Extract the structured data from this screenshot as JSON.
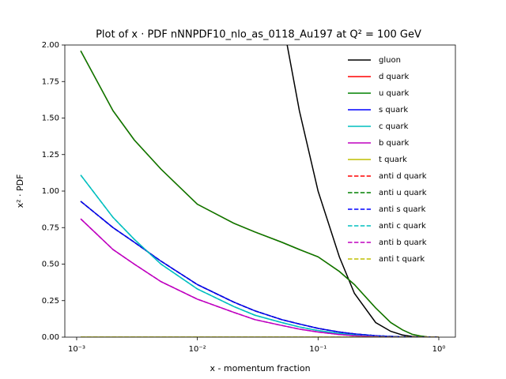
{
  "chart_data": {
    "type": "line",
    "title": "Plot of x · PDF nNNPDF10_nlo_as_0118_Au197 at Q² = 100 GeV",
    "x_label": "x - momentum fraction",
    "y_label": "x² · PDF",
    "x_scale": "log",
    "xlim": [
      0.000798,
      1.373
    ],
    "ylim": [
      0,
      2
    ],
    "xticks": [
      {
        "value": 0.001,
        "label": "10⁻³"
      },
      {
        "value": 0.01,
        "label": "10⁻²"
      },
      {
        "value": 0.1,
        "label": "10⁻¹"
      },
      {
        "value": 1,
        "label": "10⁰"
      }
    ],
    "yticks": [
      {
        "value": 0,
        "label": "0.00"
      },
      {
        "value": 0.25,
        "label": "0.25"
      },
      {
        "value": 0.5,
        "label": "0.50"
      },
      {
        "value": 0.75,
        "label": "0.75"
      },
      {
        "value": 1,
        "label": "1.00"
      },
      {
        "value": 1.25,
        "label": "1.25"
      },
      {
        "value": 1.5,
        "label": "1.50"
      },
      {
        "value": 1.75,
        "label": "1.75"
      },
      {
        "value": 2,
        "label": "2.00"
      }
    ],
    "legend": "upper right",
    "x": [
      0.00108,
      0.002,
      0.003,
      0.005,
      0.01,
      0.02,
      0.03,
      0.05,
      0.07,
      0.1,
      0.15,
      0.2,
      0.3,
      0.4,
      0.5,
      0.6,
      0.7,
      0.8,
      1.0
    ],
    "series": [
      {
        "name": "gluon",
        "color": "#000000",
        "linestyle": "solid",
        "values": [
          null,
          null,
          null,
          null,
          null,
          null,
          null,
          2.2,
          1.55,
          1.0,
          0.55,
          0.3,
          0.1,
          0.04,
          0.015,
          0.005,
          0.001,
          0,
          0
        ]
      },
      {
        "name": "d quark",
        "color": "#ff0000",
        "linestyle": "solid",
        "values": [
          1.96,
          1.55,
          1.35,
          1.15,
          0.91,
          0.78,
          0.72,
          0.65,
          0.6,
          0.55,
          0.45,
          0.36,
          0.2,
          0.1,
          0.05,
          0.02,
          0.008,
          0.002,
          0
        ]
      },
      {
        "name": "u quark",
        "color": "#008000",
        "linestyle": "solid",
        "values": [
          1.96,
          1.55,
          1.35,
          1.15,
          0.91,
          0.78,
          0.72,
          0.65,
          0.6,
          0.55,
          0.45,
          0.36,
          0.2,
          0.1,
          0.05,
          0.02,
          0.008,
          0.002,
          0
        ]
      },
      {
        "name": "s quark",
        "color": "#0000ff",
        "linestyle": "solid",
        "values": [
          0.93,
          0.75,
          0.65,
          0.52,
          0.36,
          0.24,
          0.18,
          0.12,
          0.09,
          0.06,
          0.035,
          0.022,
          0.01,
          0.005,
          0.002,
          0.001,
          0,
          0,
          0
        ]
      },
      {
        "name": "c quark",
        "color": "#00bfbf",
        "linestyle": "solid",
        "values": [
          1.11,
          0.82,
          0.67,
          0.5,
          0.33,
          0.21,
          0.15,
          0.1,
          0.07,
          0.045,
          0.025,
          0.015,
          0.006,
          0.002,
          0.001,
          0,
          0,
          0,
          0
        ]
      },
      {
        "name": "b quark",
        "color": "#bf00bf",
        "linestyle": "solid",
        "values": [
          0.81,
          0.6,
          0.5,
          0.38,
          0.26,
          0.17,
          0.12,
          0.08,
          0.055,
          0.035,
          0.018,
          0.01,
          0.004,
          0.001,
          0,
          0,
          0,
          0,
          0
        ]
      },
      {
        "name": "t quark",
        "color": "#bfbf00",
        "linestyle": "solid",
        "values": [
          0,
          0,
          0,
          0,
          0,
          0,
          0,
          0,
          0,
          0,
          0,
          0,
          0,
          0,
          0,
          0,
          0,
          0,
          0
        ]
      },
      {
        "name": "anti d quark",
        "color": "#ff0000",
        "linestyle": "dashed",
        "values": [
          0.93,
          0.75,
          0.65,
          0.52,
          0.36,
          0.24,
          0.18,
          0.12,
          0.09,
          0.06,
          0.035,
          0.022,
          0.01,
          0.005,
          0.002,
          0.001,
          0,
          0,
          0
        ]
      },
      {
        "name": "anti u quark",
        "color": "#008000",
        "linestyle": "dashed",
        "values": [
          0.93,
          0.75,
          0.65,
          0.52,
          0.36,
          0.24,
          0.18,
          0.12,
          0.09,
          0.06,
          0.035,
          0.022,
          0.01,
          0.005,
          0.002,
          0.001,
          0,
          0,
          0
        ]
      },
      {
        "name": "anti s quark",
        "color": "#0000ff",
        "linestyle": "dashed",
        "values": [
          0.93,
          0.75,
          0.65,
          0.52,
          0.36,
          0.24,
          0.18,
          0.12,
          0.09,
          0.06,
          0.035,
          0.022,
          0.01,
          0.005,
          0.002,
          0.001,
          0,
          0,
          0
        ]
      },
      {
        "name": "anti c quark",
        "color": "#00bfbf",
        "linestyle": "dashed",
        "values": [
          1.11,
          0.82,
          0.67,
          0.5,
          0.33,
          0.21,
          0.15,
          0.1,
          0.07,
          0.045,
          0.025,
          0.015,
          0.006,
          0.002,
          0.001,
          0,
          0,
          0,
          0
        ]
      },
      {
        "name": "anti b quark",
        "color": "#bf00bf",
        "linestyle": "dashed",
        "values": [
          0.81,
          0.6,
          0.5,
          0.38,
          0.26,
          0.17,
          0.12,
          0.08,
          0.055,
          0.035,
          0.018,
          0.01,
          0.004,
          0.001,
          0,
          0,
          0,
          0,
          0
        ]
      },
      {
        "name": "anti t quark",
        "color": "#bfbf00",
        "linestyle": "dashed",
        "values": [
          0,
          0,
          0,
          0,
          0,
          0,
          0,
          0,
          0,
          0,
          0,
          0,
          0,
          0,
          0,
          0,
          0,
          0,
          0
        ]
      }
    ]
  }
}
